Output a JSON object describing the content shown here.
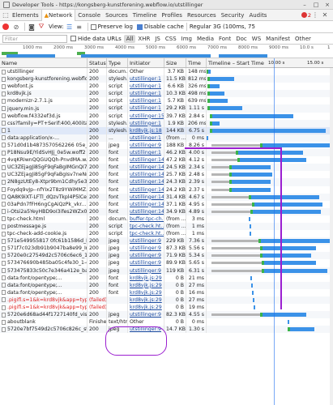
{
  "window": {
    "title": "Developer Tools - https://kongsberg-kunstforening.webflow.io/utstillinger",
    "controls": [
      "–",
      "□",
      "×"
    ]
  },
  "panel_tabs": [
    "Elements",
    "Network",
    "Console",
    "Sources",
    "Timeline",
    "Profiles",
    "Resources",
    "Security",
    "Audits"
  ],
  "active_tab": "Network",
  "error_count": "2",
  "toolbar": {
    "view_label": "View:",
    "preserve_log": "Preserve log",
    "disable_cache": "Disable cache",
    "throttle": "Regular 3G (100ms, 75"
  },
  "filter": {
    "placeholder": "Filter",
    "hide_data_urls": "Hide data URLs",
    "types": [
      "All",
      "XHR",
      "JS",
      "CSS",
      "Img",
      "Media",
      "Font",
      "Doc",
      "WS",
      "Manifest",
      "Other"
    ]
  },
  "timeline_ticks": [
    "1000 ms",
    "2000 ms",
    "3000 ms",
    "4000 ms",
    "5000 ms",
    "6000 ms",
    "7000 ms",
    "8000 ms",
    "9000 ms",
    "10.0 s",
    "1"
  ],
  "columns": {
    "name": "Name",
    "status": "Status",
    "type": "Type",
    "initiator": "Initiator",
    "size": "Size",
    "time": "Time",
    "waterfall": "Timeline – Start Time",
    "wf_t1": "10.00 s",
    "wf_t2": "15.00 s"
  },
  "rows": [
    {
      "name": "utstillinger",
      "status": "200",
      "type": "docum...",
      "initiator": "Other",
      "init_link": false,
      "size": "3.7 KB",
      "time": "148 ms"
    },
    {
      "name": "kongsberg-kunstforening.webflo...",
      "status": "200",
      "type": "stylesh...",
      "initiator": "utstillinger:1",
      "init_link": true,
      "size": "11.5 KB",
      "time": "812 ms"
    },
    {
      "name": "webfont.js",
      "status": "200",
      "type": "script",
      "initiator": "utstillinger:1",
      "init_link": true,
      "size": "6.6 KB",
      "time": "326 ms"
    },
    {
      "name": "krd8vjk.js",
      "status": "200",
      "type": "script",
      "initiator": "utstillinger:1",
      "init_link": true,
      "size": "10.3 KB",
      "time": "498 ms"
    },
    {
      "name": "modernizr-2.7.1.js",
      "status": "200",
      "type": "script",
      "initiator": "utstillinger:1",
      "init_link": true,
      "size": "5.7 KB",
      "time": "639 ms"
    },
    {
      "name": "jquery.min.js",
      "status": "200",
      "type": "script",
      "initiator": "utstillinger:1",
      "init_link": true,
      "size": "29.2 KB",
      "time": "1.11 s"
    },
    {
      "name": "webflow.f4332ef3d.js",
      "status": "200",
      "type": "script",
      "initiator": "utstillinger:15",
      "init_link": true,
      "size": "39.7 KB",
      "time": "2.84 s"
    },
    {
      "name": "css?family=PT+Serif:400,400ital...",
      "status": "200",
      "type": "stylesh...",
      "initiator": "utstillinger:1",
      "init_link": true,
      "size": "1.9 KB",
      "time": "206 ms"
    },
    {
      "name": "1",
      "status": "200",
      "type": "stylesh...",
      "initiator": "krd8vjk.js:18",
      "init_link": true,
      "size": "144 KB",
      "time": "6.75 s"
    },
    {
      "name": "data:application/x-...",
      "status": "200",
      "type": "...",
      "initiator": "utstillinger:1",
      "init_link": true,
      "size": "(from ...",
      "time": "0 ms"
    },
    {
      "name": "571d0d1b4873570562266 05e_Er...",
      "status": "200",
      "type": "jpeg",
      "initiator": "utstillinger:9",
      "init_link": true,
      "size": "188 KB",
      "time": "8.26 s"
    },
    {
      "name": "P18Nsu9E/YidSvHJj_0e5w.woff2",
      "status": "200",
      "type": "font",
      "initiator": "utstillinger:1",
      "init_link": true,
      "size": "46.2 KB",
      "time": "4.00 s"
    },
    {
      "name": "4vqKRIwnQQGUQQh-PnvdMA.w...",
      "status": "200",
      "type": "font",
      "initiator": "utstillinger:14",
      "init_link": true,
      "size": "47.2 KB",
      "time": "4.12 s"
    },
    {
      "name": "UC3ZEjagJi85gF9qFaBgIMGnQI7...",
      "status": "200",
      "type": "font",
      "initiator": "utstillinger:14",
      "init_link": true,
      "size": "24.5 KB",
      "time": "2.34 s"
    },
    {
      "name": "UC3ZEjagJi85gF9qFaBgIsv7neNn...",
      "status": "200",
      "type": "font",
      "initiator": "utstillinger:14",
      "init_link": true,
      "size": "25.7 KB",
      "time": "2.48 s"
    },
    {
      "name": "2N8gzUtEy8-Xtpr9bm1Cdhy5e3...",
      "status": "200",
      "type": "font",
      "initiator": "utstillinger:14",
      "init_link": true,
      "size": "24.3 KB",
      "time": "2.39 s"
    },
    {
      "name": "Foydq9vJp--nfYIx2T8z9YWiMMZ...",
      "status": "200",
      "type": "font",
      "initiator": "utstillinger:14",
      "init_link": true,
      "size": "24.2 KB",
      "time": "2.37 s"
    },
    {
      "name": "QA8K9iXT-LFTl_dQzvTkpl4P5lCex...",
      "status": "200",
      "type": "font",
      "initiator": "utstillinger:14",
      "init_link": true,
      "size": "31.4 KB",
      "time": "4.67 s"
    },
    {
      "name": "03aPdn7fFH6ngCgAiQzPk_vkr...",
      "status": "200",
      "type": "font",
      "initiator": "utstillinger:14",
      "init_link": true,
      "size": "37.1 KB",
      "time": "4.95 s"
    },
    {
      "name": "i-Otsi2a5YeyHBD9oI3ifes2WZx0...",
      "status": "200",
      "type": "font",
      "initiator": "utstillinger:14",
      "init_link": true,
      "size": "34.9 KB",
      "time": "4.89 s"
    },
    {
      "name": "tpc-check.html",
      "status": "200",
      "type": "docum...",
      "initiator": "buffer-tpc-ch...",
      "init_link": true,
      "size": "(from ...",
      "time": "3 ms"
    },
    {
      "name": "postmessage.js",
      "status": "200",
      "type": "script",
      "initiator": "tpc-check.ht...",
      "init_link": true,
      "size": "(from ...",
      "time": "1 ms"
    },
    {
      "name": "tpc-check-add-cookie.js",
      "status": "200",
      "type": "script",
      "initiator": "tpc-check.ht...",
      "init_link": true,
      "size": "(from ...",
      "time": "1 ms"
    },
    {
      "name": "571e549955817 0fc61b1586d_Ho...",
      "status": "200",
      "type": "jpeg",
      "initiator": "utstillinger:9",
      "init_link": true,
      "size": "229 KB",
      "time": "7.36 s"
    },
    {
      "name": "571f7c023db91b9047ba8e99_Inc...",
      "status": "200",
      "type": "jpeg",
      "initiator": "utstillinger:9",
      "init_link": true,
      "size": "87.3 KB",
      "time": "5.56 s"
    },
    {
      "name": "5720e0c27549d2c5706c6ec6_1-i...",
      "status": "200",
      "type": "jpeg",
      "initiator": "utstillinger:9",
      "init_link": true,
      "size": "71.9 KB",
      "time": "5.34 s"
    },
    {
      "name": "573476690b485ba05c4fe30_1-e...",
      "status": "200",
      "type": "jpeg",
      "initiator": "utstillinger:9",
      "init_link": true,
      "size": "89.9 KB",
      "time": "5.65 s"
    },
    {
      "name": "573475833c50c7e346a412e_ba...",
      "status": "200",
      "type": "jpeg",
      "initiator": "utstillinger:9",
      "init_link": true,
      "size": "119 KB",
      "time": "6.31 s"
    },
    {
      "name": "data:font/opentype;...",
      "status": "200",
      "type": "font",
      "initiator": "krd8vjk.js:29",
      "init_link": true,
      "size": "0 B",
      "time": "21 ms"
    },
    {
      "name": "data:font/opentype;...",
      "status": "200",
      "type": "font",
      "initiator": "krd8vjk.js:29",
      "init_link": true,
      "size": "0 B",
      "time": "27 ms"
    },
    {
      "name": "data:font/opentype;...",
      "status": "200",
      "type": "font",
      "initiator": "krd8vjk.js:29",
      "init_link": true,
      "size": "0 B",
      "time": "16 ms"
    },
    {
      "name": ".pigifl.s=1&k=krd8vjk&app=type...",
      "status": "(failed)",
      "type": "",
      "initiator": "krd8vjk.js:29",
      "init_link": true,
      "size": "0 B",
      "time": "27 ms",
      "failed": true
    },
    {
      "name": ".pigifl.s=1&k=krd8vjk&app=type...",
      "status": "(failed)",
      "type": "",
      "initiator": "krd8vjk.js:29",
      "init_link": true,
      "size": "0 B",
      "time": "19 ms",
      "failed": true
    },
    {
      "name": "5720e6d68ad44f1727140fd_vis...",
      "status": "200",
      "type": "jpeg",
      "initiator": "utstillinger:9",
      "init_link": true,
      "size": "82.3 KB",
      "time": "4.55 s"
    },
    {
      "name": "aboutblank",
      "status": "Finishe...",
      "type": "text/html",
      "initiator": "Other",
      "init_link": false,
      "size": "0 B",
      "time": "0 ms"
    },
    {
      "name": "5720e7bf7549d2c5706c826c_sta...",
      "status": "200",
      "type": "jpeg",
      "initiator": "utstillinger:9",
      "init_link": true,
      "size": "14.7 KB",
      "time": "1.30 s"
    }
  ]
}
